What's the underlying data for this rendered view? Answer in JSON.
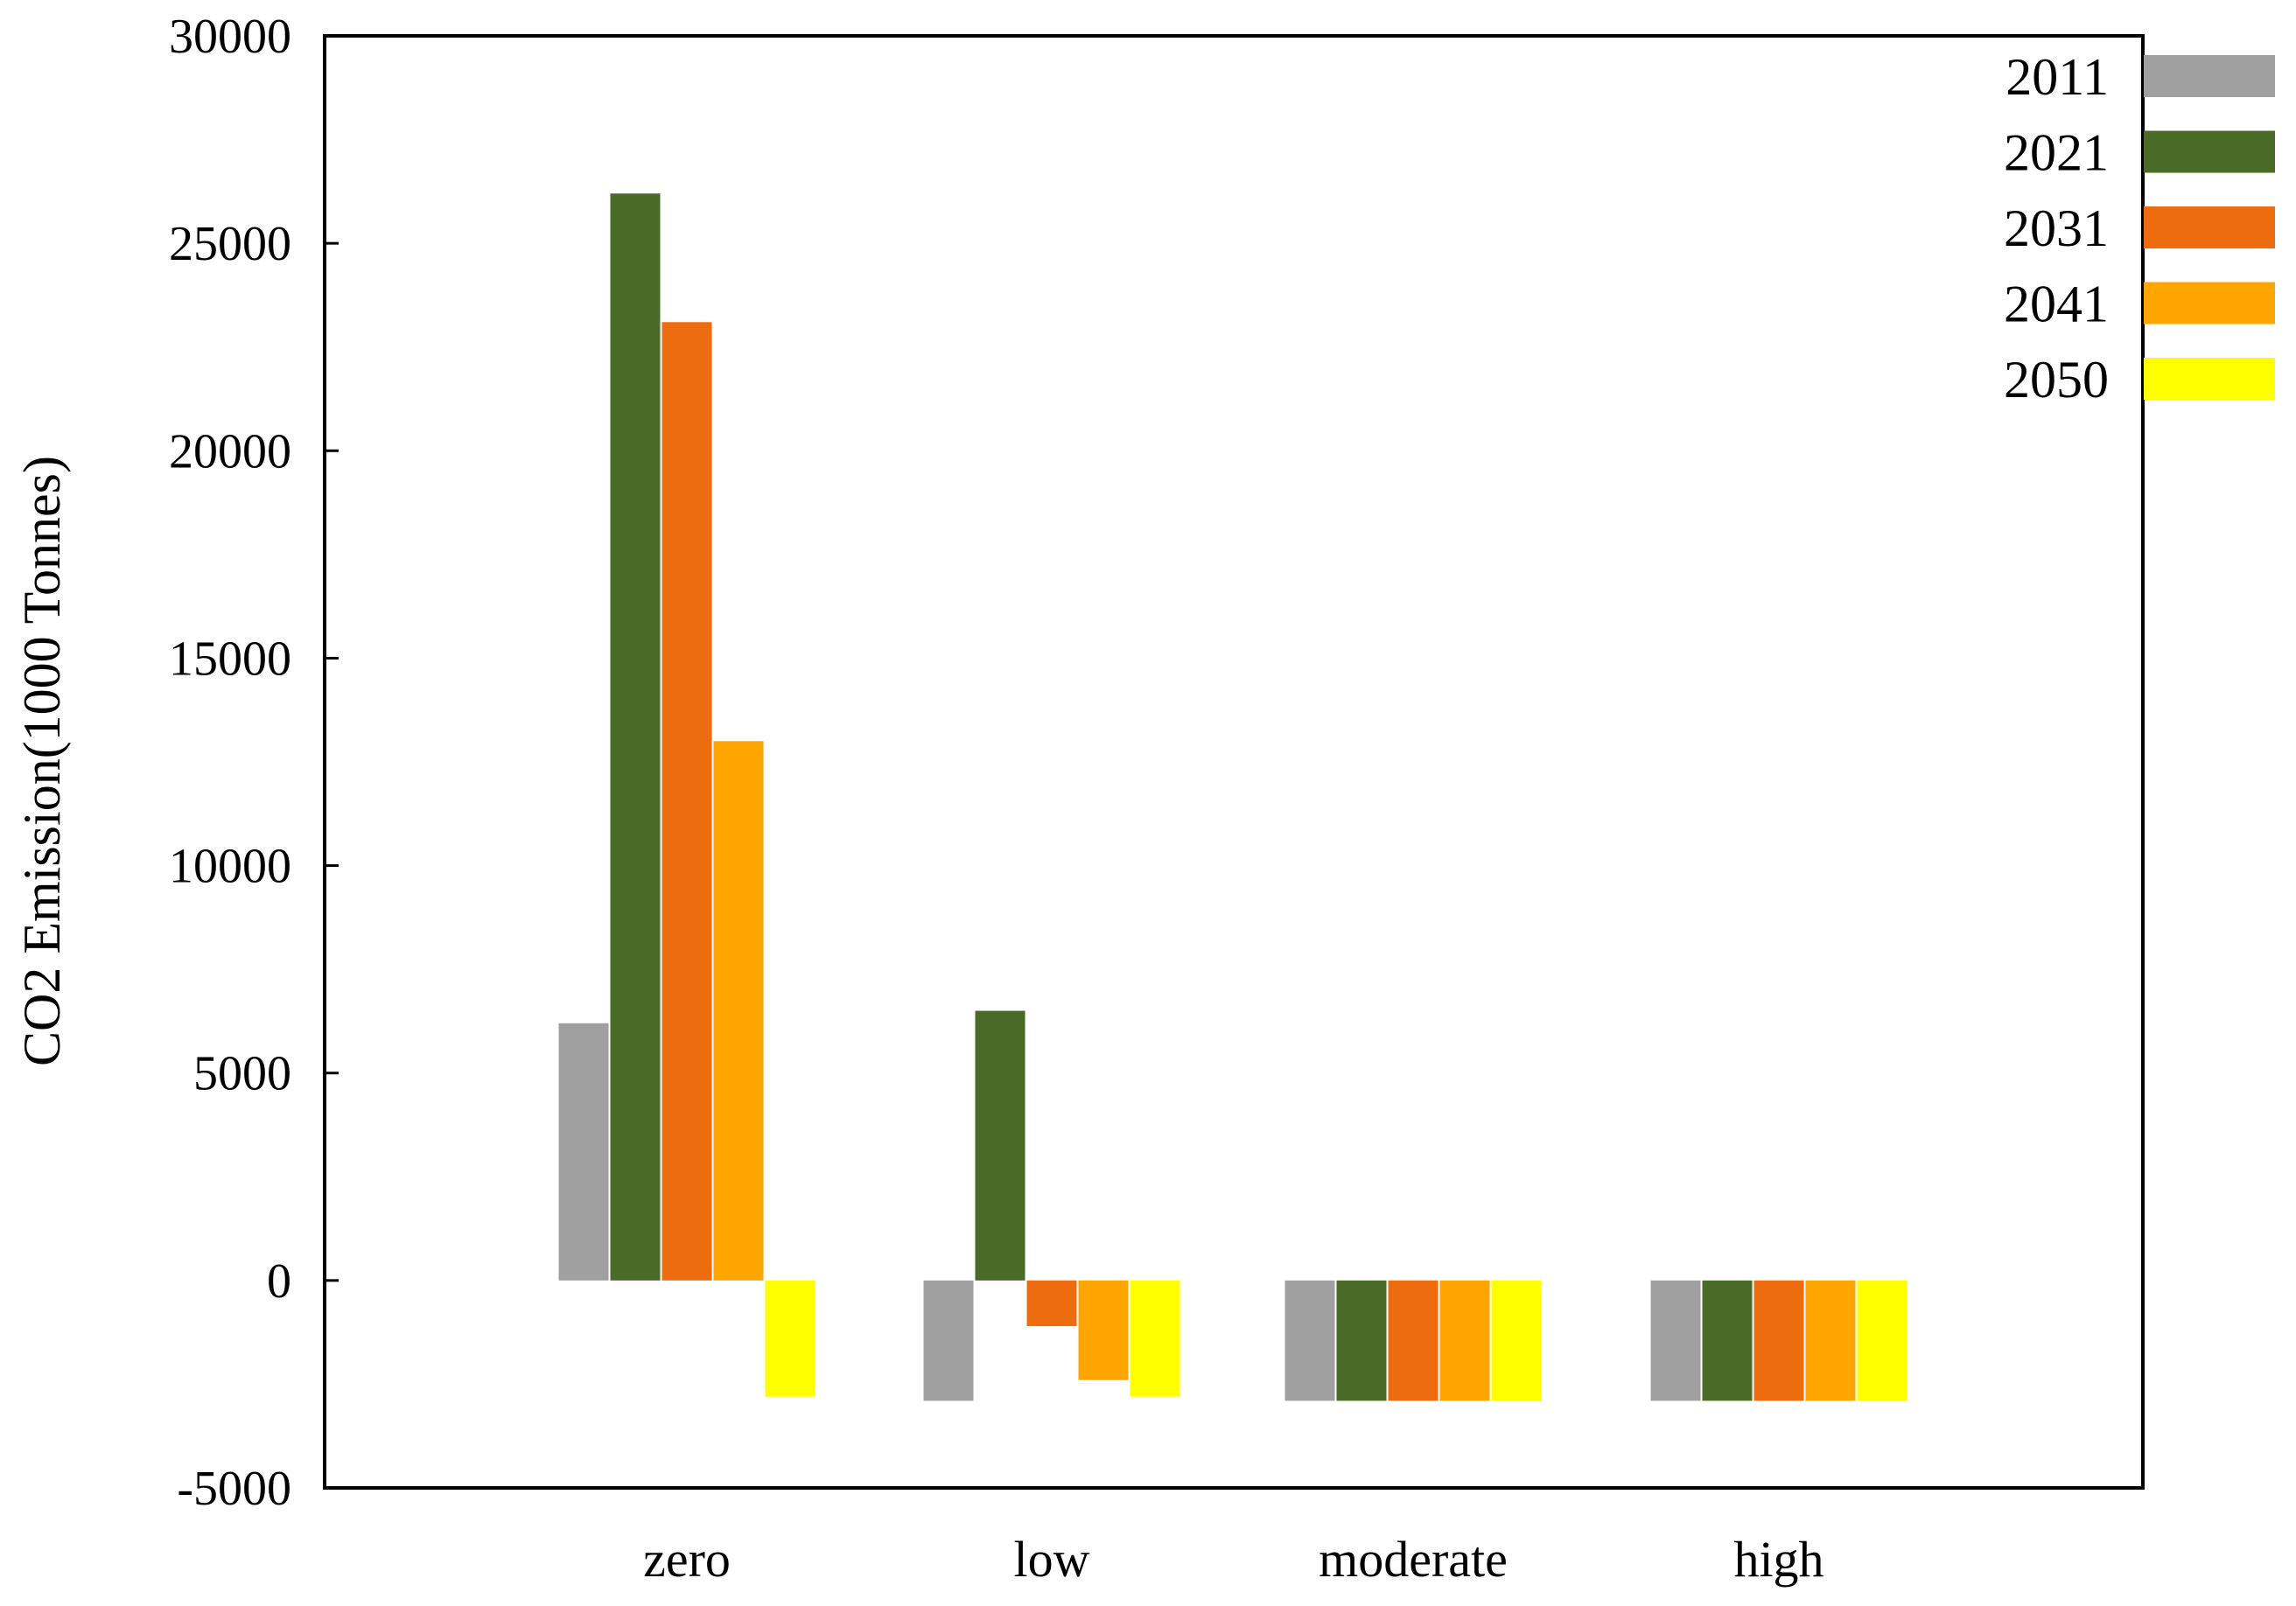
{
  "chart_data": {
    "type": "bar",
    "ylabel": "CO2 Emission(1000 Tonnes)",
    "xlabel": "",
    "ylim": [
      -5000,
      30000
    ],
    "yticks": [
      -5000,
      0,
      5000,
      10000,
      15000,
      20000,
      25000,
      30000
    ],
    "ytick_labels": [
      "-5000",
      "0",
      "5000",
      "10000",
      "15000",
      "20000",
      "25000",
      "30000"
    ],
    "categories": [
      "zero",
      "low",
      "moderate",
      "high"
    ],
    "grid": false,
    "legend_position": "top-right",
    "series": [
      {
        "name": "2011",
        "color": "#a0a0a0",
        "values": [
          6200,
          -2900,
          -2900,
          -2900
        ]
      },
      {
        "name": "2021",
        "color": "#4a6a28",
        "values": [
          26200,
          6500,
          -2900,
          -2900
        ]
      },
      {
        "name": "2031",
        "color": "#ee6c10",
        "values": [
          23100,
          -1100,
          -2900,
          -2900
        ]
      },
      {
        "name": "2041",
        "color": "#ffa500",
        "values": [
          13000,
          -2400,
          -2900,
          -2900
        ]
      },
      {
        "name": "2050",
        "color": "#ffff00",
        "values": [
          -2800,
          -2800,
          -2900,
          -2900
        ]
      }
    ]
  }
}
